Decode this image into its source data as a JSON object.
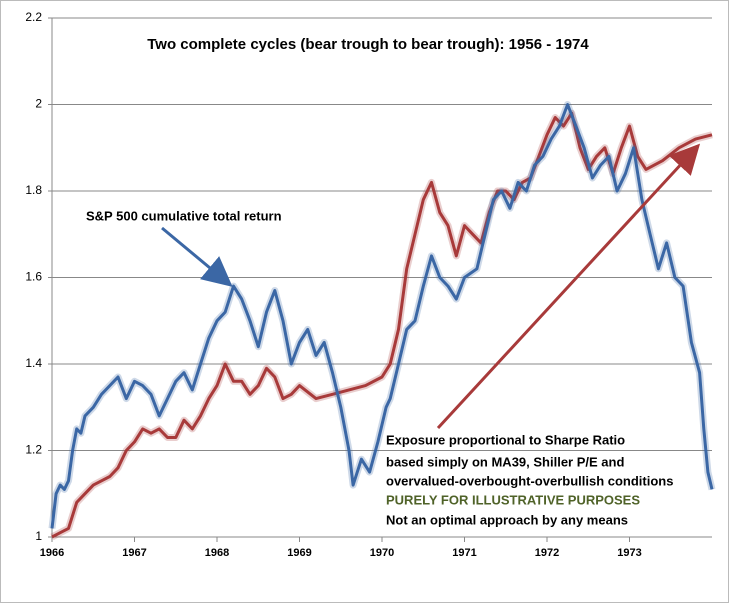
{
  "chart_data": {
    "type": "line",
    "title": "Two complete cycles (bear trough to bear trough): 1956 - 1974",
    "annotations": [
      "S&P 500 cumulative total return",
      "Exposure proportional to Sharpe Ratio",
      "based simply on MA39, Shiller P/E and",
      "overvalued-overbought-overbullish conditions",
      "PURELY FOR ILLUSTRATIVE PURPOSES",
      "Not an optimal approach by any means"
    ],
    "xlim": [
      1966,
      1974
    ],
    "xticks": [
      1966,
      1967,
      1968,
      1969,
      1970,
      1971,
      1972,
      1973
    ],
    "ylim": [
      1,
      2.2
    ],
    "yticks": [
      1,
      1.2,
      1.4,
      1.6,
      1.8,
      2,
      2.2
    ],
    "grid": true,
    "series": [
      {
        "color": "#3b67a5",
        "x": [
          1966.0,
          1966.05,
          1966.1,
          1966.15,
          1966.2,
          1966.25,
          1966.3,
          1966.35,
          1966.4,
          1966.5,
          1966.6,
          1966.7,
          1966.8,
          1966.9,
          1967.0,
          1967.1,
          1967.2,
          1967.3,
          1967.4,
          1967.5,
          1967.6,
          1967.7,
          1967.8,
          1967.9,
          1968.0,
          1968.1,
          1968.2,
          1968.3,
          1968.4,
          1968.5,
          1968.6,
          1968.7,
          1968.8,
          1968.9,
          1969.0,
          1969.1,
          1969.2,
          1969.3,
          1969.4,
          1969.5,
          1969.6,
          1969.65,
          1969.75,
          1969.85,
          1969.95,
          1970.05,
          1970.1,
          1970.2,
          1970.3,
          1970.4,
          1970.5,
          1970.6,
          1970.7,
          1970.8,
          1970.9,
          1971.0,
          1971.15,
          1971.25,
          1971.35,
          1971.45,
          1971.55,
          1971.65,
          1971.75,
          1971.85,
          1971.95,
          1972.05,
          1972.15,
          1972.25,
          1972.35,
          1972.45,
          1972.55,
          1972.65,
          1972.75,
          1972.85,
          1972.95,
          1973.05,
          1973.15,
          1973.25,
          1973.35,
          1973.45,
          1973.55,
          1973.65,
          1973.75,
          1973.85,
          1973.9,
          1973.95,
          1974.0
        ],
        "values": [
          1.02,
          1.1,
          1.12,
          1.11,
          1.13,
          1.2,
          1.25,
          1.24,
          1.28,
          1.3,
          1.33,
          1.35,
          1.37,
          1.32,
          1.36,
          1.35,
          1.33,
          1.28,
          1.32,
          1.36,
          1.38,
          1.34,
          1.4,
          1.46,
          1.5,
          1.52,
          1.58,
          1.55,
          1.5,
          1.44,
          1.52,
          1.57,
          1.5,
          1.4,
          1.45,
          1.48,
          1.42,
          1.45,
          1.38,
          1.3,
          1.2,
          1.12,
          1.18,
          1.15,
          1.22,
          1.3,
          1.32,
          1.4,
          1.48,
          1.5,
          1.58,
          1.65,
          1.6,
          1.58,
          1.55,
          1.6,
          1.62,
          1.7,
          1.78,
          1.8,
          1.76,
          1.82,
          1.8,
          1.86,
          1.88,
          1.92,
          1.95,
          2.0,
          1.95,
          1.9,
          1.83,
          1.86,
          1.88,
          1.8,
          1.84,
          1.9,
          1.78,
          1.7,
          1.62,
          1.68,
          1.6,
          1.58,
          1.45,
          1.38,
          1.25,
          1.15,
          1.11
        ]
      },
      {
        "color": "#a83a3a",
        "x": [
          1966.0,
          1966.1,
          1966.2,
          1966.3,
          1966.4,
          1966.5,
          1966.6,
          1966.7,
          1966.8,
          1966.9,
          1967.0,
          1967.1,
          1967.2,
          1967.3,
          1967.4,
          1967.5,
          1967.6,
          1967.7,
          1967.8,
          1967.9,
          1968.0,
          1968.1,
          1968.2,
          1968.3,
          1968.4,
          1968.5,
          1968.6,
          1968.7,
          1968.8,
          1968.9,
          1969.0,
          1969.2,
          1969.4,
          1969.6,
          1969.8,
          1970.0,
          1970.1,
          1970.2,
          1970.3,
          1970.4,
          1970.5,
          1970.6,
          1970.7,
          1970.8,
          1970.9,
          1971.0,
          1971.1,
          1971.2,
          1971.3,
          1971.4,
          1971.5,
          1971.6,
          1971.7,
          1971.8,
          1971.9,
          1972.0,
          1972.1,
          1972.2,
          1972.3,
          1972.4,
          1972.5,
          1972.6,
          1972.7,
          1972.8,
          1972.9,
          1973.0,
          1973.1,
          1973.2,
          1973.4,
          1973.6,
          1973.8,
          1974.0
        ],
        "values": [
          1.0,
          1.01,
          1.02,
          1.08,
          1.1,
          1.12,
          1.13,
          1.14,
          1.16,
          1.2,
          1.22,
          1.25,
          1.24,
          1.25,
          1.23,
          1.23,
          1.27,
          1.25,
          1.28,
          1.32,
          1.35,
          1.4,
          1.36,
          1.36,
          1.33,
          1.35,
          1.39,
          1.37,
          1.32,
          1.33,
          1.35,
          1.32,
          1.33,
          1.34,
          1.35,
          1.37,
          1.4,
          1.48,
          1.62,
          1.7,
          1.78,
          1.82,
          1.75,
          1.72,
          1.65,
          1.72,
          1.7,
          1.68,
          1.75,
          1.8,
          1.8,
          1.78,
          1.82,
          1.83,
          1.88,
          1.93,
          1.97,
          1.95,
          1.98,
          1.9,
          1.85,
          1.88,
          1.9,
          1.84,
          1.9,
          1.95,
          1.88,
          1.85,
          1.87,
          1.9,
          1.92,
          1.93
        ]
      }
    ]
  }
}
